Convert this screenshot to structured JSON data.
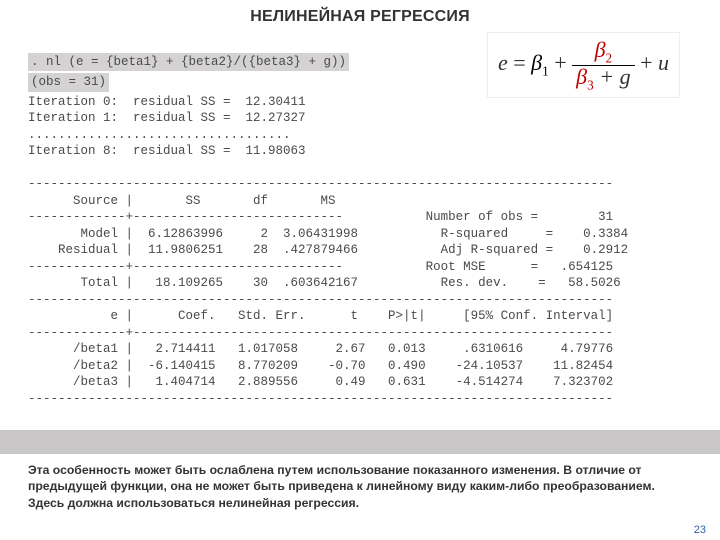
{
  "title": "НЕЛИНЕЙНАЯ РЕГРЕССИЯ",
  "formula": {
    "lhs": "e",
    "beta1": "β",
    "sub1": "1",
    "beta2_num": "β",
    "sub2": "2",
    "beta3_den": "β",
    "sub3": "3",
    "gvar": "g",
    "tail": "u"
  },
  "stata": {
    "cmd": ". nl (e = {beta1} + {beta2}/({beta3} + g))",
    "obs": "(obs = 31)",
    "body": "Iteration 0:  residual SS =  12.30411\nIteration 1:  residual SS =  12.27327\n...................................\nIteration 8:  residual SS =  11.98063\n\n------------------------------------------------------------------------------\n      Source |       SS       df       MS\n-------------+----------------------------           Number of obs =        31\n       Model |  6.12863996     2  3.06431998           R-squared     =    0.3384\n    Residual |  11.9806251    28  .427879466           Adj R-squared =    0.2912\n-------------+----------------------------           Root MSE      =   .654125\n       Total |   18.109265    30  .603642167           Res. dev.    =   58.5026\n------------------------------------------------------------------------------\n           e |      Coef.   Std. Err.      t    P>|t|     [95% Conf. Interval]\n-------------+----------------------------------------------------------------\n      /beta1 |   2.714411   1.017058     2.67   0.013     .6310616     4.79776\n      /beta2 |  -6.140415   8.770209    -0.70   0.490    -24.10537    11.82454\n      /beta3 |   1.404714   2.889556     0.49   0.631    -4.514274    7.323702\n------------------------------------------------------------------------------"
  },
  "caption": "Эта особенность может быть ослаблена путем использование показанного изменения. В отличие от предыдущей функции, она не может быть приведена к линейному виду каким-либо преобразованием.  Здесь должна использоваться нелинейная регрессия.",
  "page": "23"
}
